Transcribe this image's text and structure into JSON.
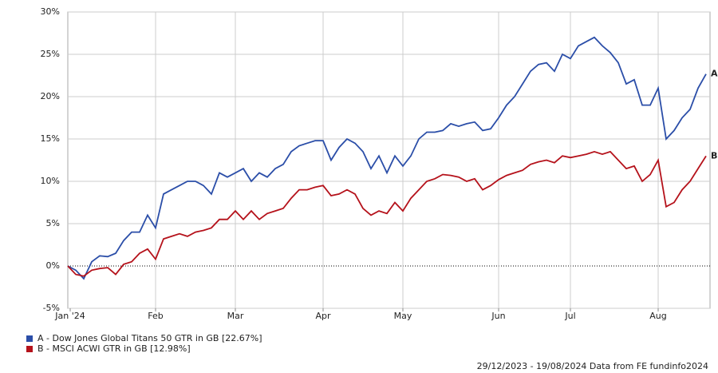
{
  "chart_data": {
    "type": "line",
    "categories": [
      "Jan '24",
      null,
      null,
      null,
      null,
      null,
      null,
      null,
      null,
      null,
      null,
      "Feb",
      null,
      null,
      null,
      null,
      null,
      null,
      null,
      null,
      null,
      "Mar",
      null,
      null,
      null,
      null,
      null,
      null,
      null,
      null,
      null,
      null,
      "Apr",
      null,
      null,
      null,
      null,
      null,
      null,
      null,
      null,
      null,
      "May",
      null,
      null,
      null,
      null,
      null,
      null,
      null,
      null,
      null,
      null,
      null,
      "Jun",
      null,
      null,
      null,
      null,
      null,
      null,
      null,
      null,
      "Jul",
      null,
      null,
      null,
      null,
      null,
      null,
      null,
      null,
      null,
      null,
      "Aug",
      null,
      null,
      null,
      null,
      null,
      null
    ],
    "series": [
      {
        "name": "A - Dow Jones Global Titans 50 GTR in GB [22.67%]",
        "label": "A",
        "color": "#2b4ea8",
        "values": [
          0,
          -0.5,
          -1.5,
          0.5,
          1.2,
          1.1,
          1.5,
          3,
          4,
          4,
          6,
          4.5,
          8.5,
          9,
          9.5,
          10,
          10,
          9.5,
          8.5,
          11,
          10.5,
          11,
          11.5,
          10,
          11,
          10.5,
          11.5,
          12,
          13.5,
          14.2,
          14.5,
          14.8,
          14.8,
          12.5,
          14,
          15,
          14.5,
          13.5,
          11.5,
          13,
          11,
          13,
          11.8,
          13,
          15,
          15.8,
          15.8,
          16,
          16.8,
          16.5,
          16.8,
          17,
          16,
          16.2,
          17.5,
          19,
          20,
          21.5,
          23,
          23.8,
          24,
          23,
          25,
          24.5,
          26,
          26.5,
          27,
          26,
          25.2,
          24,
          21.5,
          22,
          19,
          19,
          21,
          15,
          16,
          17.5,
          18.5,
          21,
          22.67
        ]
      },
      {
        "name": "B - MSCI ACWI GTR in GB [12.98%]",
        "label": "B",
        "color": "#b5121b",
        "values": [
          0,
          -1,
          -1.2,
          -0.5,
          -0.3,
          -0.2,
          -1,
          0.2,
          0.5,
          1.5,
          2,
          0.8,
          3.2,
          3.5,
          3.8,
          3.5,
          4,
          4.2,
          4.5,
          5.5,
          5.5,
          6.5,
          5.5,
          6.5,
          5.5,
          6.2,
          6.5,
          6.8,
          8,
          9,
          9,
          9.3,
          9.5,
          8.3,
          8.5,
          9,
          8.5,
          6.8,
          6,
          6.5,
          6.2,
          7.5,
          6.5,
          8,
          9,
          10,
          10.3,
          10.8,
          10.7,
          10.5,
          10,
          10.3,
          9,
          9.5,
          10.2,
          10.7,
          11,
          11.3,
          12,
          12.3,
          12.5,
          12.2,
          13,
          12.8,
          13,
          13.2,
          13.5,
          13.2,
          13.5,
          12.5,
          11.5,
          11.8,
          10,
          10.8,
          12.5,
          7,
          7.5,
          9,
          10,
          11.5,
          12.98
        ]
      }
    ],
    "ylim": [
      -5,
      30
    ],
    "yticks": [
      {
        "value": -5,
        "label": "-5%"
      },
      {
        "value": 0,
        "label": "0%"
      },
      {
        "value": 5,
        "label": "5%"
      },
      {
        "value": 10,
        "label": "10%"
      },
      {
        "value": 15,
        "label": "15%"
      },
      {
        "value": 20,
        "label": "20%"
      },
      {
        "value": 25,
        "label": "25%"
      },
      {
        "value": 30,
        "label": "30%"
      }
    ],
    "grid": true,
    "zero_line": true,
    "footer": "29/12/2023 - 19/08/2024 Data from FE fundinfo2024"
  }
}
